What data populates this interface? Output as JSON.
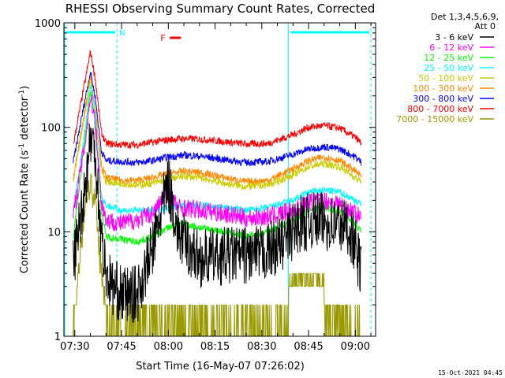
{
  "chart_data": {
    "type": "line",
    "title": "RHESSI Observing Summary Count Rates, Corrected",
    "xlabel": "Start Time (16-May-07 07:26:02)",
    "ylabel_main": "Corrected Count Rate (s",
    "ylabel_sup1": "-1",
    "ylabel_mid": " detector",
    "ylabel_sup2": "-1",
    "ylabel_end": ")",
    "yscale": "log",
    "ylim": [
      1,
      1000
    ],
    "xlim_minutes": [
      -3.5,
      96.5
    ],
    "x_ticks": [
      {
        "label": "07:30",
        "minute": 0
      },
      {
        "label": "07:45",
        "minute": 15
      },
      {
        "label": "08:00",
        "minute": 30
      },
      {
        "label": "08:15",
        "minute": 45
      },
      {
        "label": "08:30",
        "minute": 60
      },
      {
        "label": "08:45",
        "minute": 75
      },
      {
        "label": "09:00",
        "minute": 90
      }
    ],
    "y_ticks": [
      {
        "label": "1",
        "value": 1
      },
      {
        "label": "10",
        "value": 10
      },
      {
        "label": "100",
        "value": 100
      },
      {
        "label": "1000",
        "value": 1000
      }
    ],
    "legend_header": [
      "Det 1,3,4,5,6,9,",
      "Att 0"
    ],
    "legend_position": "top-right",
    "series": [
      {
        "name": "3 - 6 keV",
        "color": "#000000",
        "points": [
          [
            -0.5,
            5
          ],
          [
            3.5,
            30
          ],
          [
            5,
            80
          ],
          [
            6.5,
            60
          ],
          [
            8.5,
            9
          ],
          [
            10,
            4
          ],
          [
            12,
            3
          ],
          [
            15,
            2.5
          ],
          [
            20,
            2.5
          ],
          [
            25,
            7
          ],
          [
            30,
            30
          ],
          [
            33,
            10
          ],
          [
            35,
            8
          ],
          [
            40,
            5.5
          ],
          [
            50,
            6
          ],
          [
            60,
            6
          ],
          [
            68,
            8.5
          ],
          [
            72,
            12
          ],
          [
            78,
            13
          ],
          [
            82,
            12
          ],
          [
            88,
            11
          ],
          [
            90,
            7
          ],
          [
            92,
            4
          ]
        ]
      },
      {
        "name": "6 - 12 keV",
        "color": "#ff00ff",
        "points": [
          [
            -0.5,
            14
          ],
          [
            3.5,
            80
          ],
          [
            5,
            200
          ],
          [
            6.5,
            120
          ],
          [
            8.5,
            20
          ],
          [
            10,
            13
          ],
          [
            15,
            12
          ],
          [
            20,
            13
          ],
          [
            25,
            15
          ],
          [
            30,
            25
          ],
          [
            33,
            17
          ],
          [
            35,
            17
          ],
          [
            40,
            16
          ],
          [
            48,
            15
          ],
          [
            55,
            13.5
          ],
          [
            62,
            14
          ],
          [
            70,
            16
          ],
          [
            75,
            19
          ],
          [
            80,
            20
          ],
          [
            85,
            18.5
          ],
          [
            90,
            15
          ],
          [
            92,
            13.5
          ]
        ]
      },
      {
        "name": "12 - 25 keV",
        "color": "#00ff00",
        "points": [
          [
            -0.5,
            9
          ],
          [
            3.5,
            90
          ],
          [
            5,
            220
          ],
          [
            6.5,
            120
          ],
          [
            8.5,
            16
          ],
          [
            10,
            9
          ],
          [
            15,
            8.5
          ],
          [
            20,
            8
          ],
          [
            25,
            9
          ],
          [
            30,
            11
          ],
          [
            35,
            12
          ],
          [
            40,
            11
          ],
          [
            48,
            10
          ],
          [
            55,
            9
          ],
          [
            62,
            10
          ],
          [
            70,
            13
          ],
          [
            75,
            16
          ],
          [
            80,
            17
          ],
          [
            85,
            16
          ],
          [
            90,
            12
          ],
          [
            92,
            10
          ]
        ]
      },
      {
        "name": "25 - 50 keV",
        "color": "#00ffff",
        "points": [
          [
            -0.5,
            16
          ],
          [
            3.5,
            100
          ],
          [
            5,
            260
          ],
          [
            6.5,
            140
          ],
          [
            8.5,
            22
          ],
          [
            10,
            18
          ],
          [
            15,
            16
          ],
          [
            20,
            16
          ],
          [
            25,
            16
          ],
          [
            30,
            17
          ],
          [
            35,
            18
          ],
          [
            40,
            18
          ],
          [
            48,
            17
          ],
          [
            55,
            16
          ],
          [
            62,
            17
          ],
          [
            70,
            20
          ],
          [
            75,
            24
          ],
          [
            80,
            25
          ],
          [
            85,
            24
          ],
          [
            90,
            20
          ],
          [
            92,
            18
          ]
        ]
      },
      {
        "name": "50 - 100 keV",
        "color": "#cccc00",
        "points": [
          [
            -0.5,
            30
          ],
          [
            3.5,
            150
          ],
          [
            5,
            280
          ],
          [
            6.5,
            150
          ],
          [
            8.5,
            40
          ],
          [
            10,
            30
          ],
          [
            15,
            29
          ],
          [
            20,
            28
          ],
          [
            25,
            29
          ],
          [
            30,
            32
          ],
          [
            35,
            34
          ],
          [
            40,
            33
          ],
          [
            48,
            29
          ],
          [
            55,
            27
          ],
          [
            62,
            28
          ],
          [
            70,
            35
          ],
          [
            75,
            42
          ],
          [
            80,
            45
          ],
          [
            85,
            42
          ],
          [
            90,
            33
          ],
          [
            92,
            30
          ]
        ]
      },
      {
        "name": "100 - 300 keV",
        "color": "#ff8800",
        "points": [
          [
            -0.5,
            33
          ],
          [
            3.5,
            160
          ],
          [
            5,
            320
          ],
          [
            6.5,
            160
          ],
          [
            8.5,
            44
          ],
          [
            10,
            33
          ],
          [
            15,
            31
          ],
          [
            20,
            31
          ],
          [
            25,
            33
          ],
          [
            30,
            36
          ],
          [
            35,
            38
          ],
          [
            40,
            37
          ],
          [
            48,
            33
          ],
          [
            55,
            30
          ],
          [
            62,
            31
          ],
          [
            70,
            40
          ],
          [
            75,
            48
          ],
          [
            80,
            52
          ],
          [
            85,
            48
          ],
          [
            90,
            38
          ],
          [
            92,
            34
          ]
        ]
      },
      {
        "name": "300 - 800 keV",
        "color": "#0000ff",
        "points": [
          [
            -0.5,
            46
          ],
          [
            3.5,
            200
          ],
          [
            5,
            340
          ],
          [
            6.5,
            200
          ],
          [
            8.5,
            60
          ],
          [
            10,
            48
          ],
          [
            15,
            47
          ],
          [
            20,
            46
          ],
          [
            25,
            48
          ],
          [
            30,
            52
          ],
          [
            35,
            54
          ],
          [
            40,
            53
          ],
          [
            48,
            49
          ],
          [
            55,
            46
          ],
          [
            62,
            47
          ],
          [
            70,
            55
          ],
          [
            75,
            62
          ],
          [
            80,
            65
          ],
          [
            85,
            62
          ],
          [
            90,
            52
          ],
          [
            92,
            46
          ]
        ]
      },
      {
        "name": "800 - 7000 keV",
        "color": "#ff0000",
        "points": [
          [
            -0.5,
            68
          ],
          [
            3.5,
            300
          ],
          [
            5,
            530
          ],
          [
            6.5,
            300
          ],
          [
            8.5,
            90
          ],
          [
            10,
            70
          ],
          [
            15,
            68
          ],
          [
            20,
            68
          ],
          [
            25,
            72
          ],
          [
            30,
            76
          ],
          [
            35,
            78
          ],
          [
            40,
            77
          ],
          [
            48,
            73
          ],
          [
            55,
            69
          ],
          [
            62,
            70
          ],
          [
            70,
            85
          ],
          [
            75,
            100
          ],
          [
            80,
            104
          ],
          [
            85,
            98
          ],
          [
            90,
            80
          ],
          [
            92,
            70
          ]
        ]
      },
      {
        "name": "7000 - 15000 keV",
        "color": "#999900",
        "points": [
          [
            -0.5,
            1
          ],
          [
            2,
            8
          ],
          [
            3.5,
            20
          ],
          [
            5,
            30
          ],
          [
            6.5,
            20
          ],
          [
            8.5,
            4
          ],
          [
            10,
            2
          ],
          [
            11.5,
            1
          ],
          [
            92,
            1
          ]
        ]
      }
    ],
    "annotations": [
      {
        "text": "N",
        "color": "#00ffff"
      },
      {
        "text": "F",
        "color": "#ff0000"
      }
    ],
    "night_intervals_minutes": [
      [
        -3.5,
        13.5
      ],
      [
        68.5,
        95
      ]
    ],
    "flare_interval_minutes": [
      30.5,
      34
    ]
  },
  "footer_timestamp": "15-Oct-2021 04:45"
}
